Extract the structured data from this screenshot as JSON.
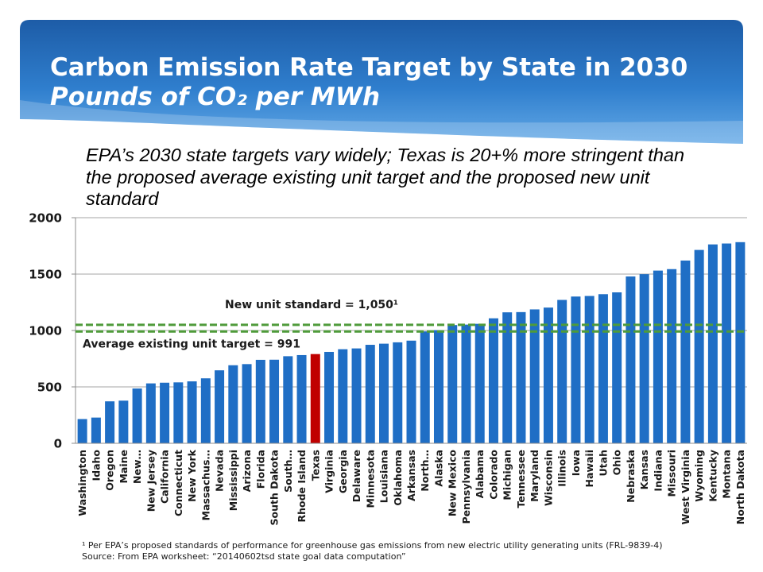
{
  "slide": {
    "commentary_lines": [
      "EPA’s 2030 state targets vary widely; Texas is 20+% more stringent than",
      "the proposed average existing unit target and the proposed new unit",
      "standard"
    ],
    "footnotes": [
      "¹ Per EPA’s proposed standards of performance for greenhouse gas emissions from new electric utility generating units (FRL-9839-4)",
      "Source: From EPA worksheet: “20140602tsd state goal data computation”"
    ]
  },
  "colors": {
    "header_top": "#1d5ca7",
    "header_mid": "#2f7ecd",
    "header_bottom": "#63a9e7",
    "title_text": "#ffffff",
    "bar": "#1f6ec5",
    "reference_line": "#4f9b3a",
    "grid": "#a6a6a6",
    "axis": "#8c8c8c"
  },
  "chart_data": {
    "type": "bar",
    "title": "Carbon Emission Rate Target by State in 2030",
    "subtitle": "Pounds of CO₂ per MWh",
    "categories": [
      "Washington",
      "Idaho",
      "Oregon",
      "Maine",
      "New…",
      "New Jersey",
      "California",
      "Connecticut",
      "New York",
      "Massachus…",
      "Nevada",
      "Mississippi",
      "Arizona",
      "Florida",
      "South Dakota",
      "South…",
      "Rhode Island",
      "Texas",
      "Virginia",
      "Georgia",
      "Delaware",
      "Minnesota",
      "Louisiana",
      "Oklahoma",
      "Arkansas",
      "North…",
      "Alaska",
      "New Mexico",
      "Pennsylvania",
      "Alabama",
      "Colorado",
      "Michigan",
      "Tennessee",
      "Maryland",
      "Wisconsin",
      "Illinois",
      "Iowa",
      "Hawaii",
      "Utah",
      "Ohio",
      "Nebraska",
      "Kansas",
      "Indiana",
      "Missouri",
      "West Virginia",
      "Wyoming",
      "Kentucky",
      "Montana",
      "North Dakota"
    ],
    "values": [
      215,
      228,
      372,
      378,
      486,
      531,
      537,
      540,
      549,
      576,
      647,
      692,
      702,
      740,
      741,
      772,
      782,
      791,
      810,
      834,
      841,
      873,
      883,
      895,
      910,
      992,
      1003,
      1048,
      1052,
      1059,
      1108,
      1161,
      1163,
      1187,
      1203,
      1271,
      1301,
      1306,
      1322,
      1338,
      1479,
      1499,
      1531,
      1544,
      1620,
      1714,
      1763,
      1771,
      1783
    ],
    "highlight": {
      "index": 17,
      "color": "#c00000"
    },
    "ylim": [
      0,
      2000
    ],
    "yticks": [
      0,
      500,
      1000,
      1500,
      2000
    ],
    "grid": true,
    "reference_lines": [
      {
        "label": "New unit standard = 1,050¹",
        "value": 1050,
        "line_style": "dashed"
      },
      {
        "label": "Average existing unit target = 991",
        "value": 991,
        "line_style": "dashed"
      }
    ]
  }
}
